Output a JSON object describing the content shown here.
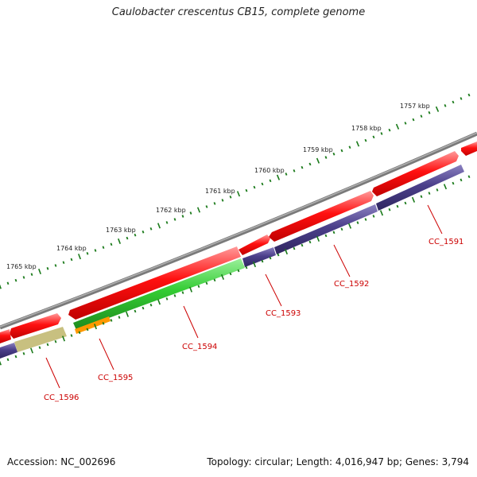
{
  "title": "Caulobacter crescentus CB15, complete genome",
  "footer": {
    "accession": "Accession: NC_002696",
    "summary": "Topology: circular; Length: 4,016,947 bp; Genes: 3,794"
  },
  "kbp_labels": [
    "1757 kbp",
    "1758 kbp",
    "1759 kbp",
    "1760 kbp",
    "1761 kbp",
    "1762 kbp",
    "1763 kbp",
    "1764 kbp",
    "1765 kbp"
  ],
  "genes": [
    "CC_1591",
    "CC_1592",
    "CC_1593",
    "CC_1594",
    "CC_1595",
    "CC_1596"
  ],
  "colors": {
    "backbone": "#808080",
    "cds_red": "#ff0000",
    "cds_green": "#33cc33",
    "cds_orange": "#ff9900",
    "cds_khaki": "#c8c080",
    "cds_navy": "#4b3f8a",
    "tick_green": "#1a7a1a",
    "label_red": "#cc0000"
  }
}
